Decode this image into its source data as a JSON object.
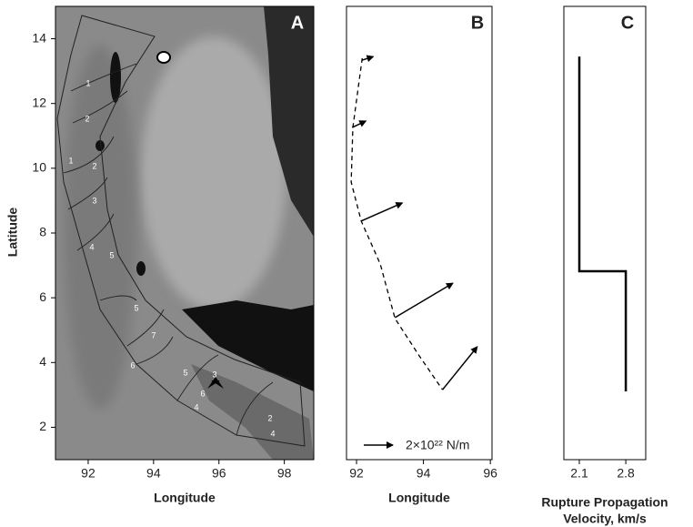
{
  "chart_data": [
    {
      "type": "map",
      "label": "A",
      "xlabel": "Longitude",
      "ylabel": "Latitude",
      "xlim": [
        91,
        98.9
      ],
      "ylim": [
        1,
        15
      ],
      "xticks": [
        92,
        94,
        96,
        98
      ],
      "yticks": [
        2,
        4,
        6,
        8,
        10,
        12,
        14
      ],
      "contour_labels": [
        "1",
        "2",
        "1",
        "2",
        "3",
        "4",
        "5",
        "5",
        "7",
        "6",
        "5",
        "3",
        "6",
        "4",
        "2",
        "4"
      ]
    },
    {
      "type": "line",
      "label": "B",
      "xlabel": "Longitude",
      "xlim": [
        91.7,
        96.05
      ],
      "ylim": [
        1,
        15
      ],
      "xticks": [
        92,
        94,
        96
      ],
      "x": [
        92.17,
        91.89,
        91.84,
        92.14,
        92.71,
        93.15,
        93.86,
        94.57
      ],
      "y": [
        13.4,
        11.26,
        9.57,
        8.37,
        7.04,
        5.36,
        4.23,
        3.16
      ],
      "color": "#000000",
      "dashed": true,
      "arrows": [
        {
          "x": 92.17,
          "y": 13.34,
          "x_end": 92.5,
          "y_end": 13.45
        },
        {
          "x": 91.87,
          "y": 11.26,
          "x_end": 92.28,
          "y_end": 11.46
        },
        {
          "x": 92.14,
          "y": 8.37,
          "x_end": 93.37,
          "y_end": 8.93
        },
        {
          "x": 93.15,
          "y": 5.39,
          "x_end": 94.88,
          "y_end": 6.45
        },
        {
          "x": 94.57,
          "y": 3.16,
          "x_end": 95.61,
          "y_end": 4.49
        }
      ],
      "legend_label": "2×10²² N/m"
    },
    {
      "type": "line",
      "label": "C",
      "xlabel": [
        "Rupture Propagation",
        "Velocity, km/s"
      ],
      "xlim": [
        1.867,
        3.1
      ],
      "ylim": [
        1,
        15
      ],
      "xticks": [
        2.1,
        2.8
      ],
      "x": [
        2.1,
        2.1,
        2.8,
        2.8
      ],
      "y": [
        13.45,
        6.82,
        6.82,
        3.11
      ],
      "color": "#000000",
      "dashed": false
    }
  ]
}
